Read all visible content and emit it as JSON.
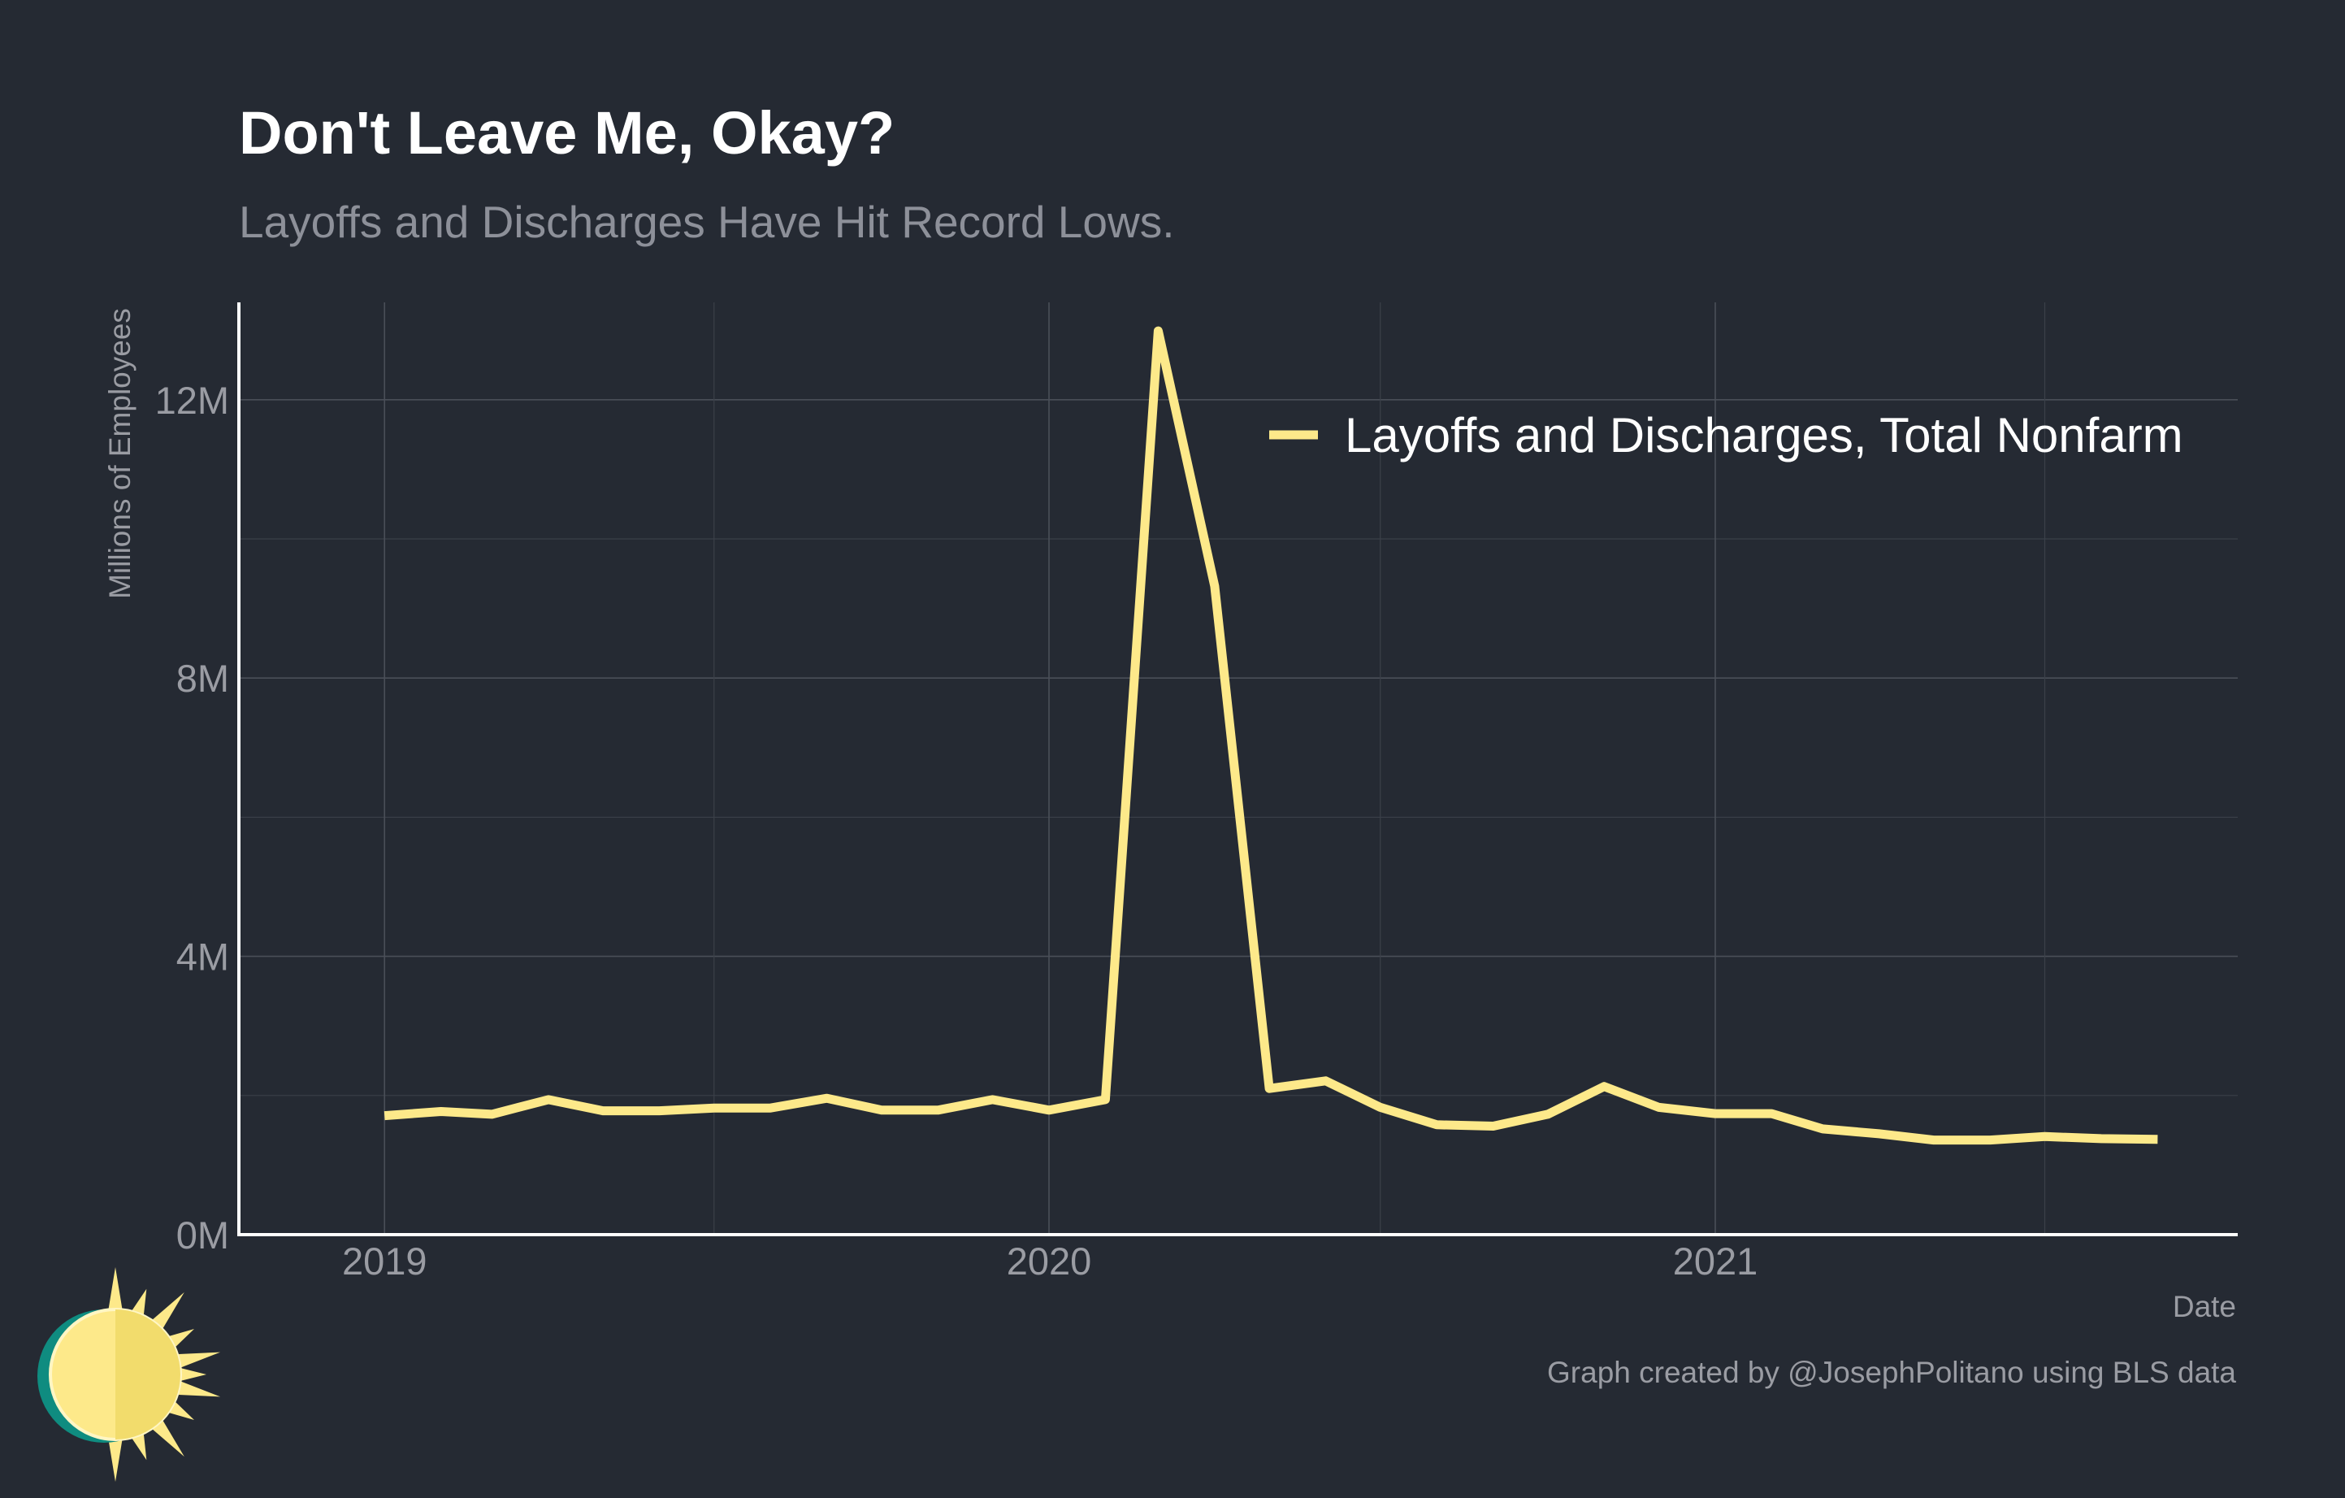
{
  "title": "Don't Leave Me, Okay?",
  "subtitle": "Layoffs and Discharges Have Hit Record Lows.",
  "caption": "Graph created by @JosephPolitano using BLS data",
  "colors": {
    "background": "#252a33",
    "line": "#fde98a",
    "logo_sun": "#fde98a",
    "logo_teal": "#0f8c80"
  },
  "icons": {
    "logo": "sun-logo-icon"
  },
  "chart_data": {
    "type": "line",
    "title": "Don't Leave Me, Okay?",
    "subtitle": "Layoffs and Discharges Have Hit Record Lows.",
    "xlabel": "Date",
    "ylabel": "Millions of Employees",
    "x_tick_labels": [
      "2019",
      "2020",
      "2021"
    ],
    "y_tick_labels": [
      "0M",
      "4M",
      "8M",
      "12M"
    ],
    "y_ticks": [
      0,
      4,
      8,
      12
    ],
    "ylim": [
      0,
      13.4
    ],
    "xlim": [
      "2018-10-13",
      "2021-10-15"
    ],
    "grid": true,
    "legend_position": "top-right",
    "x": [
      "2019-01",
      "2019-02",
      "2019-03",
      "2019-04",
      "2019-05",
      "2019-06",
      "2019-07",
      "2019-08",
      "2019-09",
      "2019-10",
      "2019-11",
      "2019-12",
      "2020-01",
      "2020-02",
      "2020-03",
      "2020-04",
      "2020-05",
      "2020-06",
      "2020-07",
      "2020-08",
      "2020-09",
      "2020-10",
      "2020-11",
      "2020-12",
      "2021-01",
      "2021-02",
      "2021-03",
      "2021-04",
      "2021-05",
      "2021-06",
      "2021-07",
      "2021-08",
      "2021-09"
    ],
    "series": [
      {
        "name": "Layoffs and Discharges, Total Nonfarm",
        "color": "#fde98a",
        "values": [
          1.71,
          1.77,
          1.73,
          1.94,
          1.78,
          1.78,
          1.82,
          1.82,
          1.96,
          1.79,
          1.79,
          1.94,
          1.79,
          1.94,
          12.99,
          9.32,
          2.1,
          2.21,
          1.83,
          1.58,
          1.56,
          1.73,
          2.13,
          1.83,
          1.74,
          1.74,
          1.52,
          1.45,
          1.36,
          1.36,
          1.41,
          1.38,
          1.37
        ]
      }
    ]
  }
}
